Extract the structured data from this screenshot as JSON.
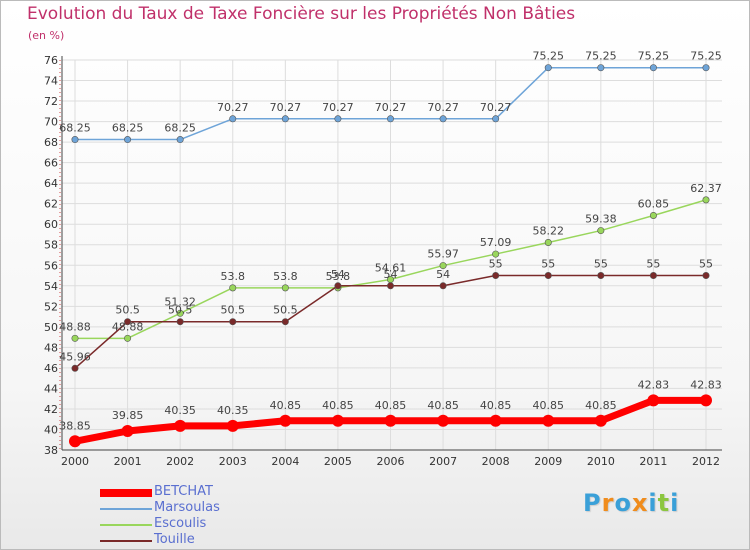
{
  "title": "Evolution du Taux de Taxe Foncière sur les Propriétés Non Bâties",
  "unit_label": "(en %)",
  "logo": {
    "text": "Proxiti",
    "letters": [
      {
        "char": "P",
        "color": "#3aa0d8"
      },
      {
        "char": "r",
        "color": "#f08c1c"
      },
      {
        "char": "o",
        "color": "#3aa0d8"
      },
      {
        "char": "x",
        "color": "#f08c1c"
      },
      {
        "char": "i",
        "color": "#3aa0d8"
      },
      {
        "char": "t",
        "color": "#8cc63f"
      },
      {
        "char": "i",
        "color": "#3aa0d8"
      }
    ]
  },
  "chart_data": {
    "type": "line",
    "title": "Evolution du Taux de Taxe Foncière sur les Propriétés Non Bâties",
    "ylabel": "(en %)",
    "xlabel": "",
    "x": [
      "2000",
      "2001",
      "2002",
      "2003",
      "2004",
      "2005",
      "2006",
      "2007",
      "2008",
      "2009",
      "2010",
      "2011",
      "2012"
    ],
    "ylim": [
      38,
      76
    ],
    "yticks": [
      38,
      40,
      42,
      44,
      46,
      48,
      50,
      52,
      54,
      56,
      58,
      60,
      62,
      64,
      66,
      68,
      70,
      72,
      74,
      76
    ],
    "grid": true,
    "legend_position": "bottom-left",
    "series": [
      {
        "name": "BETCHAT",
        "color": "#ff0000",
        "values": [
          38.85,
          39.85,
          40.35,
          40.35,
          40.85,
          40.85,
          40.85,
          40.85,
          40.85,
          40.85,
          40.85,
          42.83,
          42.83
        ],
        "labels": [
          "38.85",
          "39.85",
          "40.35",
          "40.35",
          "40.85",
          "40.85",
          "40.85",
          "40.85",
          "40.85",
          "40.85",
          "40.85",
          "42.83",
          "42.83"
        ]
      },
      {
        "name": "Marsoulas",
        "color": "#6ea4d8",
        "values": [
          68.25,
          68.25,
          68.25,
          70.27,
          70.27,
          70.27,
          70.27,
          70.27,
          70.27,
          75.25,
          75.25,
          75.25,
          75.25
        ],
        "labels": [
          "68.25",
          "68.25",
          "68.25",
          "70.27",
          "70.27",
          "70.27",
          "70.27",
          "70.27",
          "70.27",
          "75.25",
          "75.25",
          "75.25",
          "75.25"
        ]
      },
      {
        "name": "Escoulis",
        "color": "#99d65c",
        "values": [
          48.88,
          48.88,
          51.32,
          53.8,
          53.8,
          53.8,
          54.61,
          55.97,
          57.09,
          58.22,
          59.38,
          60.85,
          62.37
        ],
        "labels": [
          "48.88",
          "48.88",
          "51.32",
          "53.8",
          "53.8",
          "53.8",
          "54.61",
          "55.97",
          "57.09",
          "58.22",
          "59.38",
          "60.85",
          "62.37"
        ]
      },
      {
        "name": "Touille",
        "color": "#7a2a2a",
        "values": [
          45.96,
          50.5,
          50.5,
          50.5,
          50.5,
          54,
          54,
          54,
          55,
          55,
          55,
          55,
          55
        ],
        "labels": [
          "45.96",
          "50.5",
          "50.5",
          "50.5",
          "50.5",
          "54",
          "54",
          "54",
          "55",
          "55",
          "55",
          "55",
          "55"
        ]
      }
    ]
  }
}
